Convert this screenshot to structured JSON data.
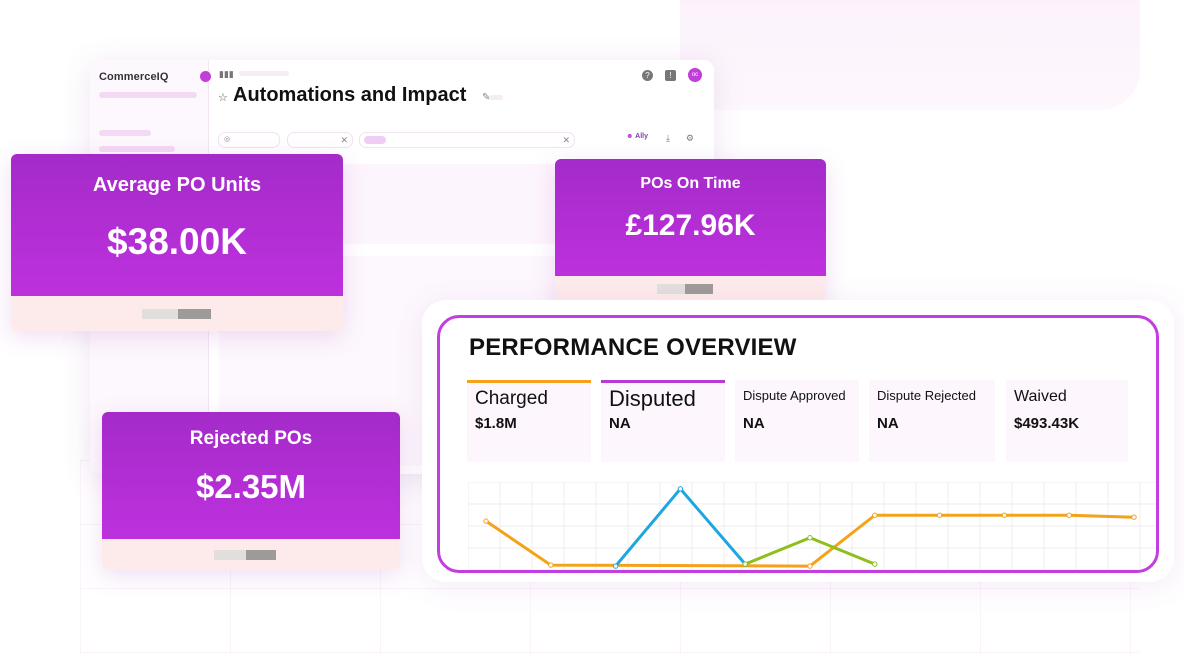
{
  "app": {
    "brand": "CommerceIQ",
    "title": "Automations and Impact",
    "ally_label": "Ally"
  },
  "cards": {
    "average_po_units": {
      "label": "Average PO Units",
      "value": "$38.00K"
    },
    "pos_on_time": {
      "label": "POs On Time",
      "value": "£127.96K"
    },
    "rejected_pos": {
      "label": "Rejected POs",
      "value": "$2.35M"
    }
  },
  "performance": {
    "title": "PERFORMANCE OVERVIEW",
    "tiles": [
      {
        "name": "Charged",
        "value": "$1.8M",
        "accent": "#f4a21a"
      },
      {
        "name": "Disputed",
        "value": "NA",
        "accent": "#b63ad3"
      },
      {
        "name": "Dispute Approved",
        "value": "NA",
        "accent": ""
      },
      {
        "name": "Dispute Rejected",
        "value": "NA",
        "accent": ""
      },
      {
        "name": "Waived",
        "value": "$493.43K",
        "accent": ""
      }
    ]
  },
  "chart_data": {
    "type": "line",
    "x": [
      0,
      1,
      2,
      3,
      4,
      5,
      6,
      7,
      8,
      9,
      10
    ],
    "series": [
      {
        "color": "#f4a21a",
        "values": [
          3.0,
          -1.5,
          null,
          null,
          null,
          -1.6,
          3.6,
          3.6,
          3.6,
          3.6,
          3.4
        ]
      },
      {
        "color": "#1fa6e0",
        "values": [
          null,
          null,
          -1.6,
          6.3,
          -1.4,
          null,
          null,
          null,
          null,
          null,
          null
        ]
      },
      {
        "color": "#8fbe1e",
        "values": [
          null,
          null,
          null,
          null,
          -1.4,
          1.3,
          -1.4,
          null,
          null,
          null,
          null
        ]
      }
    ],
    "ylim": [
      -2,
      7
    ],
    "grid": true
  }
}
